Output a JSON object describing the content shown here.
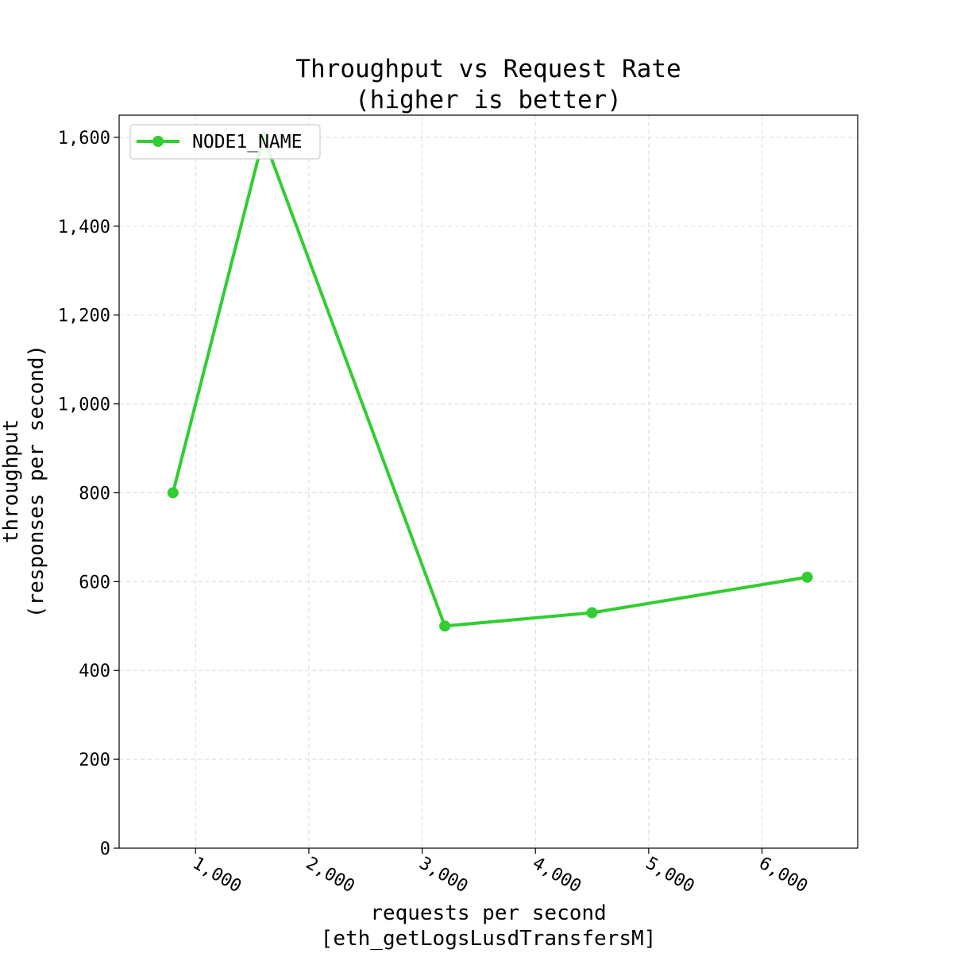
{
  "chart_data": {
    "type": "line",
    "title": "Throughput vs Request Rate\n(higher is better)",
    "xlabel": "requests per second\n[eth_getLogsLusdTransfersM]",
    "ylabel": "throughput\n(responses per second)",
    "xlim": [
      325,
      6845
    ],
    "ylim": [
      0,
      1650
    ],
    "xticks": [
      1000,
      2000,
      3000,
      4000,
      5000,
      6000
    ],
    "xtick_labels": [
      "1,000",
      "2,000",
      "3,000",
      "4,000",
      "5,000",
      "6,000"
    ],
    "yticks": [
      0,
      200,
      400,
      600,
      800,
      1000,
      1200,
      1400,
      1600
    ],
    "ytick_labels": [
      "0",
      "200",
      "400",
      "600",
      "800",
      "1,000",
      "1,200",
      "1,400",
      "1,600"
    ],
    "grid": true,
    "legend_position": "upper left",
    "series": [
      {
        "name": "NODE1_NAME",
        "color": "#32cd32",
        "marker": "circle",
        "x": [
          800,
          1600,
          3200,
          4500,
          6400
        ],
        "y": [
          800,
          1600,
          500,
          530,
          610
        ]
      }
    ]
  }
}
